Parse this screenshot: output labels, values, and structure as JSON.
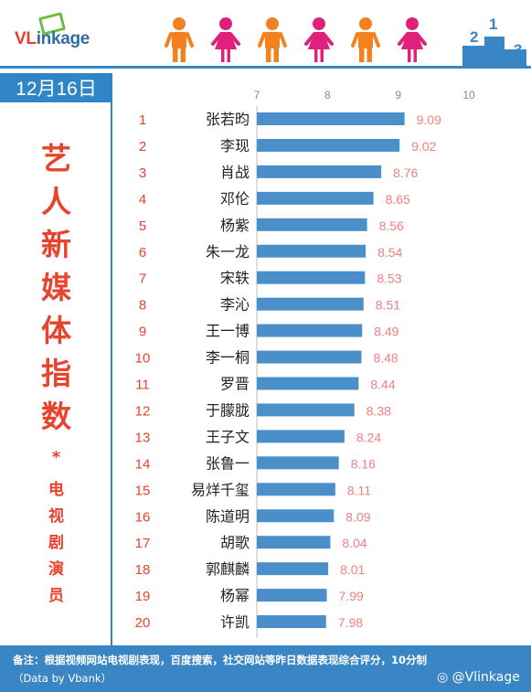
{
  "brand": {
    "logo_prefix": "VL",
    "logo_suffix": "inkage",
    "accent": "#e8412b",
    "blue": "#2f85c5"
  },
  "header": {
    "figures": [
      "male-icon",
      "female-icon",
      "male-icon",
      "female-icon",
      "male-icon",
      "female-icon"
    ],
    "figure_colors": [
      "#f4811f",
      "#e0217b",
      "#f4811f",
      "#e0217b",
      "#f4811f",
      "#e0217b"
    ],
    "podium_numbers": [
      "2",
      "1",
      "3"
    ]
  },
  "date": "12月16日",
  "title_chars": [
    "艺",
    "人",
    "新",
    "媒",
    "体",
    "指",
    "数"
  ],
  "star": "*",
  "subtitle_chars": [
    "电",
    "视",
    "剧",
    "演",
    "员"
  ],
  "chart_data": {
    "type": "bar",
    "orientation": "horizontal",
    "xlim": [
      7,
      10
    ],
    "xticks": [
      "7",
      "8",
      "9",
      "10"
    ],
    "bar_color": "#4a8fc9",
    "value_label_color": "#f08080",
    "rank_color": "#e8432d",
    "ranks": [
      "1",
      "2",
      "3",
      "4",
      "5",
      "6",
      "7",
      "8",
      "9",
      "10",
      "11",
      "12",
      "13",
      "14",
      "15",
      "16",
      "17",
      "18",
      "19",
      "20"
    ],
    "categories": [
      "张若昀",
      "李现",
      "肖战",
      "邓伦",
      "杨紫",
      "朱一龙",
      "宋轶",
      "李沁",
      "王一博",
      "李一桐",
      "罗晋",
      "于朦胧",
      "王子文",
      "张鲁一",
      "易烊千玺",
      "陈道明",
      "胡歌",
      "郭麒麟",
      "杨幂",
      "许凯"
    ],
    "values": [
      9.09,
      9.02,
      8.76,
      8.65,
      8.56,
      8.54,
      8.53,
      8.51,
      8.49,
      8.48,
      8.44,
      8.38,
      8.24,
      8.16,
      8.11,
      8.09,
      8.04,
      8.01,
      7.99,
      7.98
    ],
    "value_labels": [
      "9.09",
      "9.02",
      "8.76",
      "8.65",
      "8.56",
      "8.54",
      "8.53",
      "8.51",
      "8.49",
      "8.48",
      "8.44",
      "8.38",
      "8.24",
      "8.16",
      "8.11",
      "8.09",
      "8.04",
      "8.01",
      "7.99",
      "7.98"
    ]
  },
  "footer": {
    "note": "备注：根据视频网站电视剧表现，百度搜索，社交网站等昨日数据表现综合评分，10分制",
    "source": "（Data by Vbank）",
    "weibo": "@Vlinkage"
  }
}
